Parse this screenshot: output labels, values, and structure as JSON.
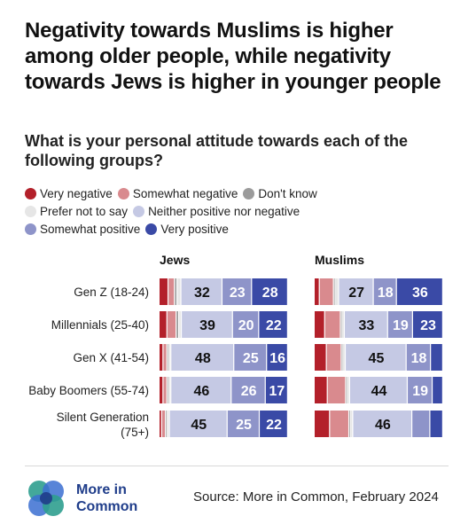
{
  "title": "Negativity towards Muslims is higher among older people, while negativity towards Jews is higher in younger people",
  "subtitle": "What is your personal attitude towards each of the following groups?",
  "legend": [
    {
      "label": "Very negative",
      "color": "#b3202a"
    },
    {
      "label": "Somewhat negative",
      "color": "#d98a8e"
    },
    {
      "label": "Don't know",
      "color": "#9b9b9b"
    },
    {
      "label": "Prefer not to say",
      "color": "#e6e6e6"
    },
    {
      "label": "Neither positive nor negative",
      "color": "#c5c9e4"
    },
    {
      "label": "Somewhat positive",
      "color": "#8e94c9"
    },
    {
      "label": "Very positive",
      "color": "#3a4aa6"
    }
  ],
  "chart_data": {
    "type": "bar",
    "stacked": true,
    "orientation": "horizontal",
    "categories": [
      "Gen Z (18-24)",
      "Millennials (25-40)",
      "Gen X (41-54)",
      "Baby Boomers (55-74)",
      "Silent Generation (75+)"
    ],
    "panels": [
      {
        "title": "Jews",
        "series": [
          {
            "name": "Very negative",
            "values": [
              7,
              6,
              3,
              3,
              2
            ]
          },
          {
            "name": "Somewhat negative",
            "values": [
              5,
              7,
              3,
              3,
              3
            ]
          },
          {
            "name": "Don't know",
            "values": [
              2,
              2,
              1,
              1,
              1
            ]
          },
          {
            "name": "Prefer not to say",
            "values": [
              3,
              2,
              2,
              2,
              2
            ]
          },
          {
            "name": "Neither positive nor negative",
            "values": [
              32,
              39,
              48,
              46,
              45
            ]
          },
          {
            "name": "Somewhat positive",
            "values": [
              23,
              20,
              25,
              26,
              25
            ]
          },
          {
            "name": "Very positive",
            "values": [
              28,
              22,
              16,
              17,
              22
            ]
          }
        ]
      },
      {
        "title": "Muslims",
        "series": [
          {
            "name": "Very negative",
            "values": [
              4,
              8,
              9,
              10,
              12
            ]
          },
          {
            "name": "Somewhat negative",
            "values": [
              11,
              12,
              11,
              14,
              15
            ]
          },
          {
            "name": "Don't know",
            "values": [
              1,
              1,
              1,
              1,
              1
            ]
          },
          {
            "name": "Prefer not to say",
            "values": [
              3,
              2,
              2,
              2,
              2
            ]
          },
          {
            "name": "Neither positive nor negative",
            "values": [
              27,
              33,
              45,
              44,
              46
            ]
          },
          {
            "name": "Somewhat positive",
            "values": [
              18,
              19,
              18,
              19,
              14
            ]
          },
          {
            "name": "Very positive",
            "values": [
              36,
              23,
              9,
              8,
              10
            ]
          }
        ]
      }
    ],
    "value_labels_min": 15,
    "grid": false,
    "legend_position": "top"
  },
  "logo_text": [
    "More in",
    "Common"
  ],
  "source": "Source: More in Common, February 2024"
}
